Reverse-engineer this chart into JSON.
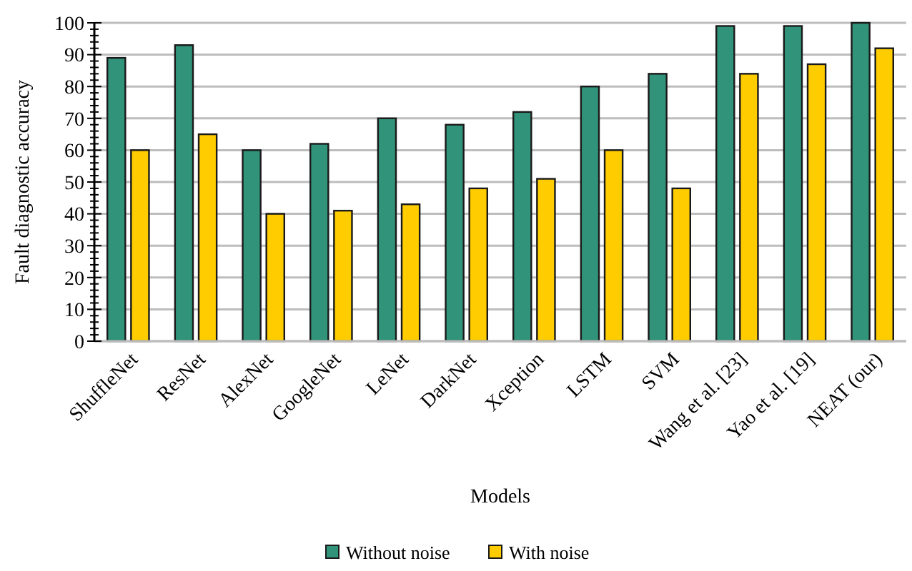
{
  "chart_data": {
    "type": "bar",
    "xlabel": "Models",
    "ylabel": "Fault diagnostic accuracy",
    "categories": [
      "ShuffleNet",
      "ResNet",
      "AlexNet",
      "GoogleNet",
      "LeNet",
      "DarkNet",
      "Xception",
      "LSTM",
      "SVM",
      "Wang et al. [23]",
      "Yao et al. [19]",
      "NEAT (our)"
    ],
    "series": [
      {
        "name": "Without noise",
        "color": "#31937a",
        "values": [
          89,
          93,
          60,
          62,
          70,
          68,
          72,
          80,
          84,
          99,
          99,
          100
        ]
      },
      {
        "name": "With noise",
        "color": "#ffcc00",
        "values": [
          60,
          65,
          40,
          41,
          43,
          48,
          51,
          60,
          48,
          84,
          87,
          92
        ]
      }
    ],
    "ylim": [
      0,
      100
    ],
    "yticks": [
      0,
      {
        "value": 2,
        "label": null
      },
      {
        "value": 4,
        "label": null
      },
      {
        "value": 6,
        "label": null
      },
      {
        "value": 8,
        "label": null
      },
      10,
      {
        "value": 12,
        "label": null
      },
      {
        "value": 14,
        "label": null
      },
      {
        "value": 16,
        "label": null
      },
      {
        "value": 18,
        "label": null
      },
      20,
      {
        "value": 22,
        "label": null
      },
      {
        "value": 24,
        "label": null
      },
      {
        "value": 26,
        "label": null
      },
      {
        "value": 28,
        "label": null
      },
      30,
      {
        "value": 32,
        "label": null
      },
      {
        "value": 34,
        "label": null
      },
      {
        "value": 36,
        "label": null
      },
      {
        "value": 38,
        "label": null
      },
      40,
      {
        "value": 42,
        "label": null
      },
      {
        "value": 44,
        "label": null
      },
      {
        "value": 46,
        "label": null
      },
      {
        "value": 48,
        "label": null
      },
      50,
      {
        "value": 52,
        "label": null
      },
      {
        "value": 54,
        "label": null
      },
      {
        "value": 56,
        "label": null
      },
      {
        "value": 58,
        "label": null
      },
      60,
      {
        "value": 62,
        "label": null
      },
      {
        "value": 64,
        "label": null
      },
      {
        "value": 66,
        "label": null
      },
      {
        "value": 68,
        "label": null
      },
      70,
      {
        "value": 72,
        "label": null
      },
      {
        "value": 74,
        "label": null
      },
      {
        "value": 76,
        "label": null
      },
      {
        "value": 78,
        "label": null
      },
      80,
      {
        "value": 82,
        "label": null
      },
      {
        "value": 84,
        "label": null
      },
      {
        "value": 86,
        "label": null
      },
      {
        "value": 88,
        "label": null
      },
      90,
      {
        "value": 92,
        "label": null
      },
      {
        "value": 94,
        "label": null
      },
      {
        "value": 96,
        "label": null
      },
      {
        "value": 98,
        "label": null
      },
      100
    ],
    "grid": "y",
    "legend": "bottom"
  }
}
